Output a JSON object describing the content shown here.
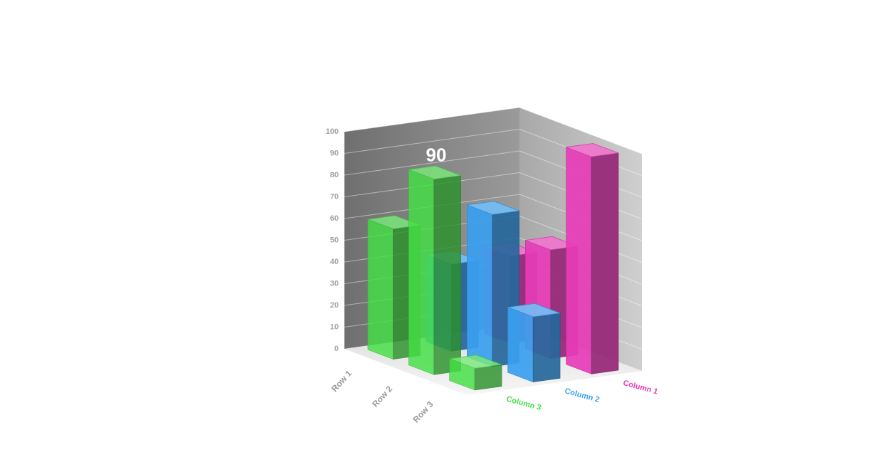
{
  "chart_data": {
    "type": "bar",
    "subtype": "3d-bar",
    "categories": [
      "Row 1",
      "Row 2",
      "Row 3"
    ],
    "series": [
      {
        "name": "Column 1",
        "values": [
          40,
          50,
          100
        ],
        "color": "#e83cb8"
      },
      {
        "name": "Column 2",
        "values": [
          40,
          70,
          30
        ],
        "color": "#3aa0f0"
      },
      {
        "name": "Column 3",
        "values": [
          60,
          90,
          10
        ],
        "color": "#44e044"
      }
    ],
    "ylim": [
      0,
      100
    ],
    "yticks": [
      "0",
      "10",
      "20",
      "30",
      "40",
      "50",
      "60",
      "70",
      "80",
      "90",
      "100"
    ],
    "highlight": {
      "label": "90"
    },
    "grid": true,
    "colors": {
      "back_wall": "#b5b5b5",
      "side_wall": "#7f7f7f",
      "floor": "#ededed"
    }
  }
}
